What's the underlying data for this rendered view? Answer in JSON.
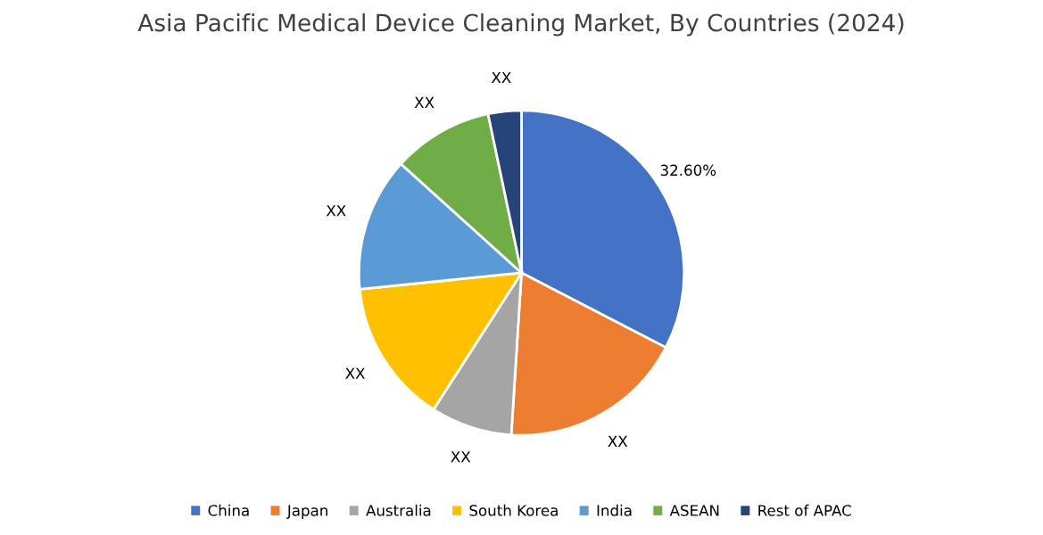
{
  "chart_data": {
    "type": "pie",
    "title": "Asia Pacific Medical Device Cleaning Market, By Countries (2024)",
    "categories": [
      "China",
      "Japan",
      "Australia",
      "South Korea",
      "India",
      "ASEAN",
      "Rest of APAC"
    ],
    "values": [
      32.6,
      18.4,
      8.1,
      14.3,
      13.3,
      10.0,
      3.3
    ],
    "colors": [
      "#4472c4",
      "#ed7d31",
      "#a5a5a5",
      "#ffc000",
      "#5b9bd5",
      "#70ad47",
      "#264478"
    ],
    "value_labels": [
      "32.60%",
      "XX",
      "XX",
      "XX",
      "XX",
      "XX",
      "XX"
    ],
    "legend": "bottom"
  }
}
